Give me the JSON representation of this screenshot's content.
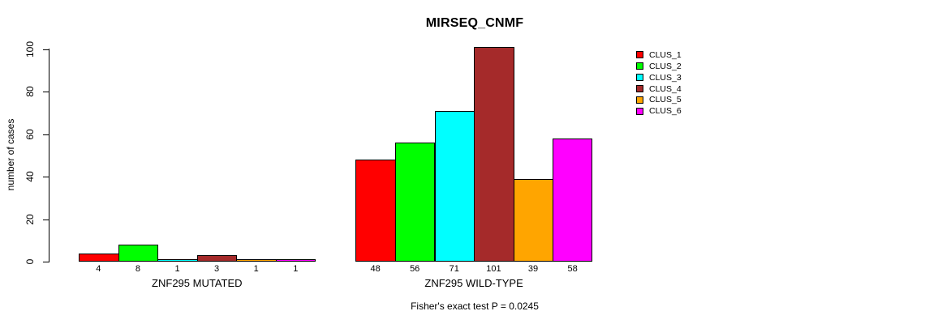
{
  "chart_data": {
    "type": "bar",
    "title": "MIRSEQ_CNMF",
    "xlabel": "",
    "ylabel": "number of cases",
    "ylim": [
      0,
      100
    ],
    "yticks": [
      0,
      20,
      40,
      60,
      80,
      100
    ],
    "grid": false,
    "legend_position": "right-inside-top",
    "bar_value_labels_shown": true,
    "categories": [
      "ZNF295 MUTATED",
      "ZNF295 WILD-TYPE"
    ],
    "series": [
      {
        "name": "CLUS_1",
        "color": "#FF0000",
        "values": [
          4,
          48
        ]
      },
      {
        "name": "CLUS_2",
        "color": "#00FF00",
        "values": [
          8,
          56
        ]
      },
      {
        "name": "CLUS_3",
        "color": "#00FFFF",
        "values": [
          1,
          71
        ]
      },
      {
        "name": "CLUS_4",
        "color": "#A52A2A",
        "values": [
          3,
          101
        ]
      },
      {
        "name": "CLUS_5",
        "color": "#FFA500",
        "values": [
          1,
          39
        ]
      },
      {
        "name": "CLUS_6",
        "color": "#FF00FF",
        "values": [
          1,
          58
        ]
      }
    ],
    "annotation": "Fisher's exact test P = 0.0245",
    "text_color": "#000000",
    "background_color": "#FFFFFF"
  }
}
